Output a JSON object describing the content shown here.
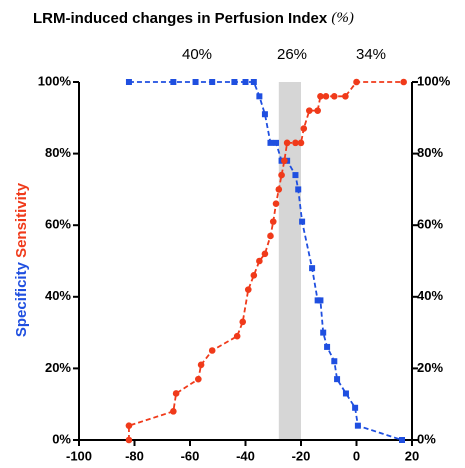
{
  "chart_data": {
    "type": "line",
    "title": "LRM-induced  changes in Perfusion Index",
    "title_unit": "(%)",
    "annotations": [
      "40%",
      "26%",
      "34%"
    ],
    "shaded_region": {
      "x": [
        -28,
        -20
      ],
      "color": "#d6d6d6"
    },
    "xlim": [
      -100,
      20
    ],
    "xticks": [
      -100,
      -80,
      -60,
      -40,
      -20,
      0,
      20
    ],
    "ylim": [
      0,
      100
    ],
    "yticks": [
      {
        "value": 0,
        "label": "0%"
      },
      {
        "value": 20,
        "label": "20%"
      },
      {
        "value": 40,
        "label": "40%"
      },
      {
        "value": 60,
        "label": "60%"
      },
      {
        "value": 80,
        "label": "80%"
      },
      {
        "value": 100,
        "label": "100%"
      }
    ],
    "y2lim": [
      0,
      100
    ],
    "y2ticks": [
      {
        "value": 0,
        "label": "0%"
      },
      {
        "value": 20,
        "label": "20%"
      },
      {
        "value": 40,
        "label": "40%"
      },
      {
        "value": 60,
        "label": "60%"
      },
      {
        "value": 80,
        "label": "80%"
      },
      {
        "value": 100,
        "label": "100%"
      }
    ],
    "series": [
      {
        "name": "Specificity",
        "color": "#1f4fe0",
        "marker": "square",
        "x": [
          -82,
          -66,
          -58,
          -52,
          -44,
          -40,
          -37,
          -35,
          -33,
          -31,
          -29,
          -27,
          -25,
          -22,
          -21,
          -19.6,
          -16,
          -14,
          -13,
          -12,
          -10.6,
          -8,
          -7,
          -3.8,
          -0.5,
          0.5,
          16.4
        ],
        "values": [
          100,
          100,
          100,
          100,
          100,
          100,
          100,
          96,
          91,
          83,
          83,
          78,
          78,
          74,
          70,
          61,
          48,
          39,
          39,
          30,
          26,
          22,
          17,
          13,
          9,
          4,
          0
        ]
      },
      {
        "name": "Sensitivity",
        "color": "#f03a1a",
        "marker": "circle",
        "x": [
          -82,
          -82,
          -66,
          -65,
          -57,
          -56,
          -52,
          -43,
          -41,
          -39,
          -37,
          -35,
          -33,
          -31,
          -30,
          -29,
          -28,
          -27,
          -26,
          -25,
          -22,
          -20,
          -19,
          -17,
          -14,
          -13,
          -11,
          -8,
          -4,
          0,
          17
        ],
        "values": [
          0,
          4,
          8,
          13,
          17,
          21,
          25,
          29,
          33,
          42,
          46,
          50,
          52,
          57,
          61,
          66,
          70,
          74,
          78,
          83,
          83,
          83,
          87,
          92,
          92,
          96,
          96,
          96,
          96,
          100,
          100
        ]
      }
    ]
  }
}
